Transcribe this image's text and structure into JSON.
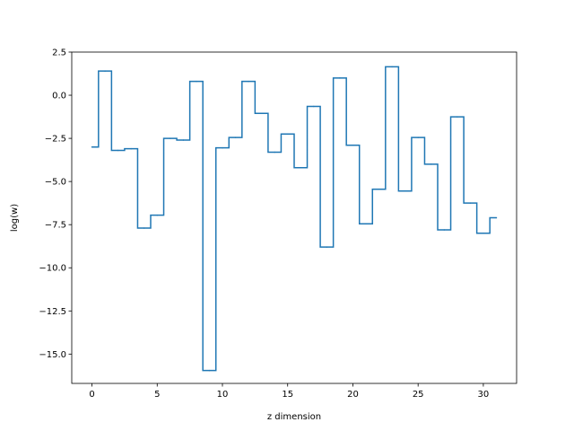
{
  "chart_data": {
    "type": "line",
    "drawstyle": "steps-mid",
    "title": "",
    "xlabel": "z dimension",
    "ylabel": "log(w)",
    "xlim": [
      -1.55,
      32.55
    ],
    "ylim": [
      -16.7,
      2.5
    ],
    "xticks": [
      0,
      5,
      10,
      15,
      20,
      25,
      30
    ],
    "xtick_labels": [
      "0",
      "5",
      "10",
      "15",
      "20",
      "25",
      "30"
    ],
    "yticks": [
      2.5,
      0.0,
      -2.5,
      -5.0,
      -7.5,
      -10.0,
      -12.5,
      -15.0
    ],
    "ytick_labels": [
      "2.5",
      "0.0",
      "−2.5",
      "−5.0",
      "−7.5",
      "−10.0",
      "−12.5",
      "−15.0"
    ],
    "grid": false,
    "line_color": "#1f77b4",
    "series": [
      {
        "x": [
          0,
          1,
          2,
          3,
          4,
          5,
          6,
          7,
          8,
          9,
          10,
          11,
          12,
          13,
          14,
          15,
          16,
          17,
          18,
          19,
          20,
          21,
          22,
          23,
          24,
          25,
          26,
          27,
          28,
          29,
          30,
          31
        ],
        "values": [
          -3.0,
          1.4,
          -3.2,
          -3.1,
          -7.7,
          -6.95,
          -2.5,
          -2.6,
          0.8,
          -15.95,
          -3.05,
          -2.45,
          0.8,
          -1.05,
          -3.3,
          -2.25,
          -4.2,
          -0.65,
          -8.8,
          1.0,
          -2.9,
          -7.45,
          -5.45,
          1.65,
          -5.55,
          -2.45,
          -4.0,
          -7.8,
          -1.25,
          -6.25,
          -8.0,
          -7.1
        ]
      }
    ]
  }
}
